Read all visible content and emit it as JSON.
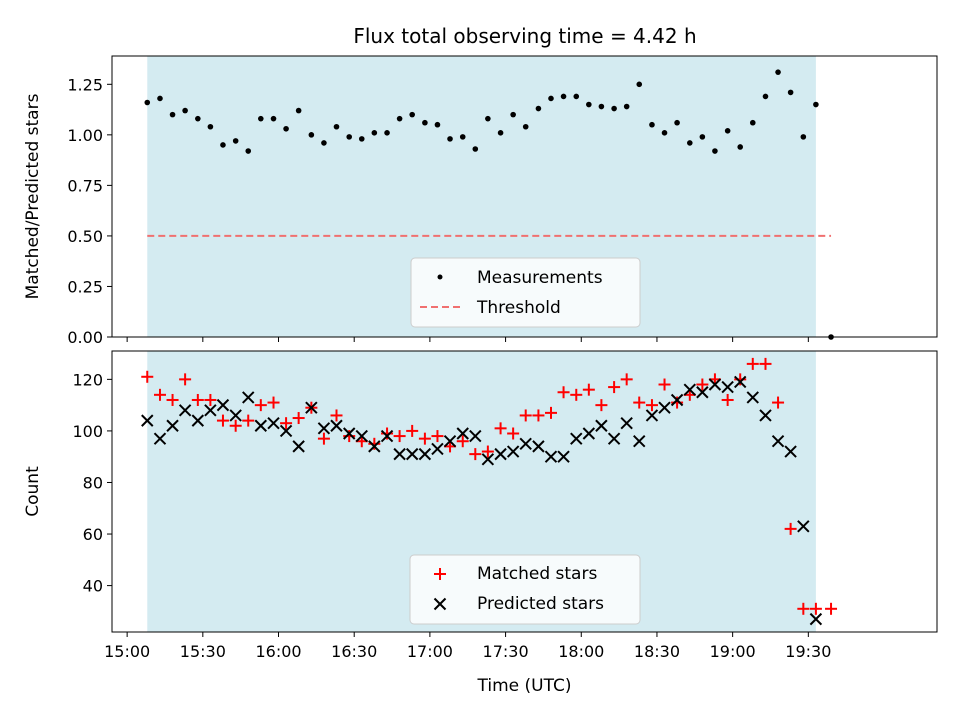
{
  "title": "Flux total observing time = 4.42 h",
  "colors": {
    "shade": "#d4ebf1",
    "measurements": "#000000",
    "threshold": "#f07070",
    "matched": "#ff0000",
    "predicted": "#000000"
  },
  "x_axis": {
    "label": "Time (UTC)",
    "ticks": [
      "15:00",
      "15:30",
      "16:00",
      "16:30",
      "17:00",
      "17:30",
      "18:00",
      "18:30",
      "19:00",
      "19:30"
    ],
    "tick_hours": [
      15.0,
      15.5,
      16.0,
      16.5,
      17.0,
      17.5,
      18.0,
      18.5,
      19.0,
      19.5
    ],
    "range_hours": [
      14.9,
      20.35
    ],
    "observing_window_hours": [
      15.133,
      19.55
    ]
  },
  "chart_data": [
    {
      "type": "scatter",
      "name": "ratio",
      "ylabel": "Matched/Predicted stars",
      "ylim": [
        0,
        1.39
      ],
      "yticks": [
        "0.00",
        "0.25",
        "0.50",
        "0.75",
        "1.00",
        "1.25"
      ],
      "ytick_values": [
        0,
        0.25,
        0.5,
        0.75,
        1.0,
        1.25
      ],
      "legend_position": "lower-center",
      "series": [
        {
          "name": "Measurements",
          "kind": "dots",
          "x": [
            15.133,
            15.217,
            15.3,
            15.383,
            15.467,
            15.55,
            15.633,
            15.717,
            15.8,
            15.883,
            15.967,
            16.05,
            16.133,
            16.217,
            16.3,
            16.383,
            16.467,
            16.55,
            16.633,
            16.717,
            16.8,
            16.883,
            16.967,
            17.05,
            17.133,
            17.217,
            17.3,
            17.383,
            17.467,
            17.55,
            17.633,
            17.717,
            17.8,
            17.883,
            17.967,
            18.05,
            18.133,
            18.217,
            18.3,
            18.383,
            18.467,
            18.55,
            18.633,
            18.717,
            18.8,
            18.883,
            18.967,
            19.05,
            19.133,
            19.217,
            19.3,
            19.383,
            19.467,
            19.55,
            19.65
          ],
          "y": [
            1.16,
            1.18,
            1.1,
            1.12,
            1.08,
            1.04,
            0.95,
            0.97,
            0.92,
            1.08,
            1.08,
            1.03,
            1.12,
            1.0,
            0.96,
            1.04,
            0.99,
            0.98,
            1.01,
            1.01,
            1.08,
            1.1,
            1.06,
            1.05,
            0.98,
            0.99,
            0.93,
            1.08,
            1.01,
            1.1,
            1.04,
            1.13,
            1.18,
            1.19,
            1.19,
            1.15,
            1.14,
            1.13,
            1.14,
            1.25,
            1.05,
            1.01,
            1.06,
            0.96,
            0.99,
            0.92,
            1.02,
            0.94,
            1.06,
            1.19,
            1.31,
            1.21,
            0.99,
            1.15,
            0.0
          ]
        },
        {
          "name": "Threshold",
          "kind": "dashed-line",
          "x": [
            15.133,
            19.65
          ],
          "y": [
            0.5,
            0.5
          ]
        }
      ]
    },
    {
      "type": "scatter",
      "name": "counts",
      "ylabel": "Count",
      "ylim": [
        22,
        131
      ],
      "yticks": [
        "40",
        "60",
        "80",
        "100",
        "120"
      ],
      "ytick_values": [
        40,
        60,
        80,
        100,
        120
      ],
      "legend_position": "lower-center",
      "series": [
        {
          "name": "Matched stars",
          "kind": "plus",
          "x": [
            15.133,
            15.217,
            15.3,
            15.383,
            15.467,
            15.55,
            15.633,
            15.717,
            15.8,
            15.883,
            15.967,
            16.05,
            16.133,
            16.217,
            16.3,
            16.383,
            16.467,
            16.55,
            16.633,
            16.717,
            16.8,
            16.883,
            16.967,
            17.05,
            17.133,
            17.217,
            17.3,
            17.383,
            17.467,
            17.55,
            17.633,
            17.717,
            17.8,
            17.883,
            17.967,
            18.05,
            18.133,
            18.217,
            18.3,
            18.383,
            18.467,
            18.55,
            18.633,
            18.717,
            18.8,
            18.883,
            18.967,
            19.05,
            19.133,
            19.217,
            19.3,
            19.383,
            19.467,
            19.55,
            19.65
          ],
          "y": [
            121,
            114,
            112,
            120,
            112,
            112,
            104,
            102,
            104,
            110,
            111,
            103,
            105,
            109,
            97,
            106,
            98,
            96,
            95,
            99,
            98,
            100,
            97,
            98,
            94,
            96,
            91,
            92,
            101,
            99,
            106,
            106,
            107,
            115,
            114,
            116,
            110,
            117,
            120,
            111,
            110,
            118,
            111,
            114,
            118,
            120,
            112,
            120,
            126,
            126,
            111,
            62,
            31,
            31,
            31
          ]
        },
        {
          "name": "Predicted stars",
          "kind": "cross",
          "x": [
            15.133,
            15.217,
            15.3,
            15.383,
            15.467,
            15.55,
            15.633,
            15.717,
            15.8,
            15.883,
            15.967,
            16.05,
            16.133,
            16.217,
            16.3,
            16.383,
            16.467,
            16.55,
            16.633,
            16.717,
            16.8,
            16.883,
            16.967,
            17.05,
            17.133,
            17.217,
            17.3,
            17.383,
            17.467,
            17.55,
            17.633,
            17.717,
            17.8,
            17.883,
            17.967,
            18.05,
            18.133,
            18.217,
            18.3,
            18.383,
            18.467,
            18.55,
            18.633,
            18.717,
            18.8,
            18.883,
            18.967,
            19.05,
            19.133,
            19.217,
            19.3,
            19.383,
            19.467,
            19.55
          ],
          "y": [
            104,
            97,
            102,
            108,
            104,
            108,
            110,
            106,
            113,
            102,
            103,
            100,
            94,
            109,
            101,
            102,
            99,
            98,
            94,
            98,
            91,
            91,
            91,
            93,
            96,
            99,
            98,
            89,
            91,
            92,
            95,
            94,
            90,
            90,
            97,
            99,
            102,
            97,
            103,
            96,
            106,
            109,
            112,
            116,
            115,
            118,
            117,
            119,
            113,
            106,
            96,
            92,
            63,
            27
          ]
        }
      ]
    }
  ]
}
